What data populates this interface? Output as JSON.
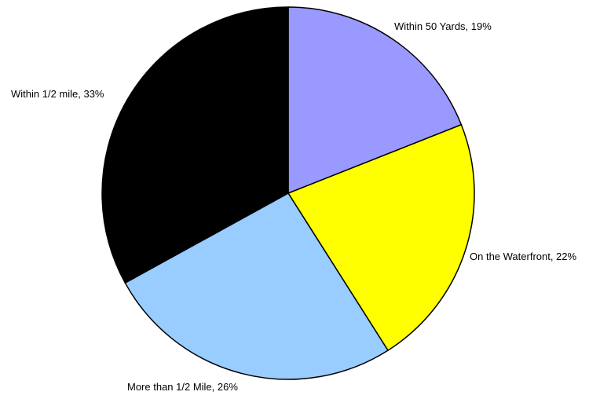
{
  "chart_data": {
    "type": "pie",
    "title": "",
    "slices": [
      {
        "label": "Within 50 Yards",
        "value": 19,
        "display": "Within 50 Yards, 19%",
        "color": "#9999ff"
      },
      {
        "label": "On the Waterfront",
        "value": 22,
        "display": "On the Waterfront, 22%",
        "color": "#ffff00"
      },
      {
        "label": "More than 1/2 Mile",
        "value": 26,
        "display": "More than 1/2 Mile, 26%",
        "color": "#99ccff"
      },
      {
        "label": "Within 1/2 mile",
        "value": 33,
        "display": "Within 1/2 mile, 33%",
        "color": "#000000"
      }
    ],
    "start_angle": "top (12 o'clock)",
    "direction": "clockwise",
    "legend": "none"
  }
}
